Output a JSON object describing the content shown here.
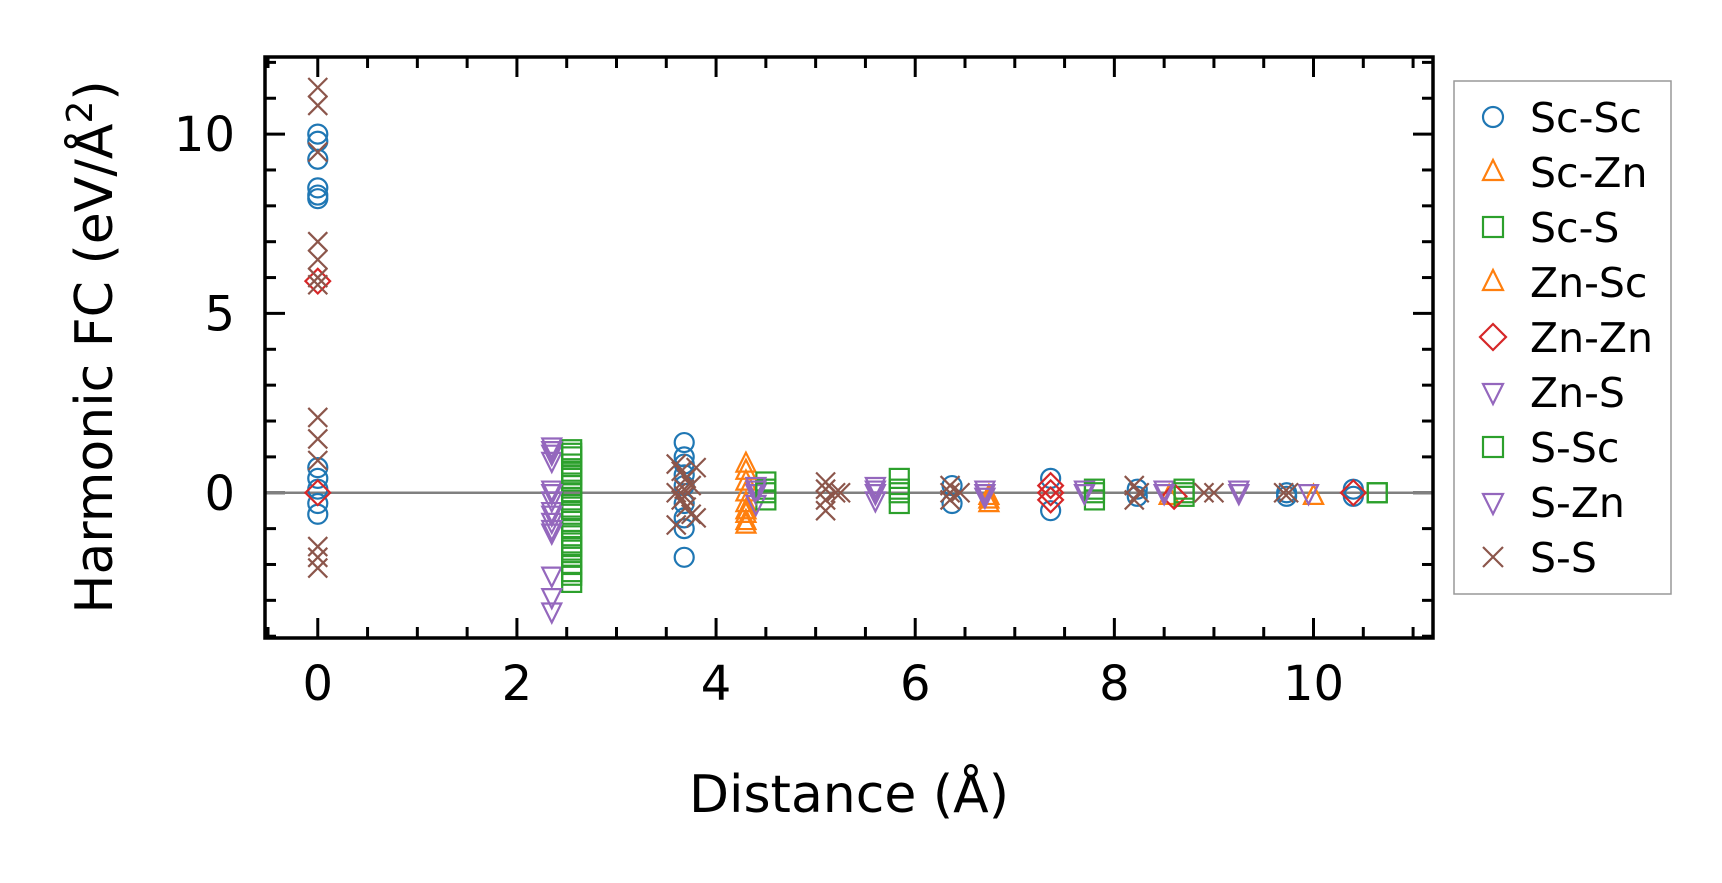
{
  "chart_data": {
    "type": "scatter",
    "title": "",
    "xlabel": "Distance (Å)",
    "ylabel_main": "Harmonic FC (eV/Å",
    "ylabel_sup": "2",
    "ylabel_close": ")",
    "xlim": [
      -0.53,
      11.2
    ],
    "ylim": [
      -4.05,
      12.15
    ],
    "xticks": [
      0,
      2,
      4,
      6,
      8,
      10
    ],
    "xtick_labels": [
      "0",
      "2",
      "4",
      "6",
      "8",
      "10"
    ],
    "yticks": [
      0,
      5,
      10
    ],
    "ytick_labels": [
      "0",
      "5",
      "10"
    ],
    "grid": false,
    "zero_line": true,
    "legend_position": "right-outside",
    "series": [
      {
        "name": "Sc-Sc",
        "marker": "circle",
        "filled": false,
        "color": "#1f77b4",
        "points": [
          [
            0,
            10
          ],
          [
            0,
            9.8
          ],
          [
            0,
            9.3
          ],
          [
            0,
            8.5
          ],
          [
            0,
            8.3
          ],
          [
            0,
            8.2
          ],
          [
            0,
            0.7
          ],
          [
            0,
            0.4
          ],
          [
            0,
            0.1
          ],
          [
            0,
            -0.3
          ],
          [
            0,
            -0.6
          ],
          [
            3.68,
            1.4
          ],
          [
            3.68,
            1.0
          ],
          [
            3.68,
            0.8
          ],
          [
            3.68,
            0.5
          ],
          [
            3.68,
            0.2
          ],
          [
            3.68,
            -0.3
          ],
          [
            3.68,
            -0.7
          ],
          [
            3.68,
            -1.0
          ],
          [
            3.68,
            -1.8
          ],
          [
            6.37,
            0.2
          ],
          [
            6.37,
            -0.3
          ],
          [
            7.36,
            0.4
          ],
          [
            7.36,
            -0.5
          ],
          [
            8.23,
            0.1
          ],
          [
            8.23,
            -0.1
          ],
          [
            9.73,
            0
          ],
          [
            9.73,
            -0.1
          ],
          [
            10.4,
            0.1
          ],
          [
            10.4,
            -0.1
          ]
        ]
      },
      {
        "name": "Sc-Zn",
        "marker": "triangle-up",
        "filled": false,
        "color": "#ff7f0e",
        "points": [
          [
            4.3,
            0.8
          ],
          [
            4.3,
            0.3
          ],
          [
            4.3,
            -0.3
          ],
          [
            4.3,
            -0.6
          ],
          [
            4.3,
            -0.9
          ],
          [
            6.74,
            -0.1
          ],
          [
            6.74,
            -0.3
          ],
          [
            8.55,
            -0.1
          ],
          [
            10.0,
            -0.1
          ]
        ]
      },
      {
        "name": "Sc-S",
        "marker": "square",
        "filled": false,
        "color": "#2ca02c",
        "points": [
          [
            2.55,
            1.2
          ],
          [
            2.55,
            1.0
          ],
          [
            2.55,
            0.8
          ],
          [
            2.55,
            0.6
          ],
          [
            2.55,
            0.4
          ],
          [
            2.55,
            0.2
          ],
          [
            2.55,
            0
          ],
          [
            2.55,
            -0.2
          ],
          [
            2.55,
            -0.4
          ],
          [
            2.55,
            -0.6
          ],
          [
            2.55,
            -0.8
          ],
          [
            2.55,
            -1.0
          ],
          [
            2.55,
            -1.2
          ],
          [
            2.55,
            -1.4
          ],
          [
            2.55,
            -1.6
          ],
          [
            2.55,
            -1.8
          ],
          [
            2.55,
            -2.0
          ],
          [
            2.55,
            -2.3
          ],
          [
            2.55,
            -2.5
          ],
          [
            4.5,
            0.3
          ],
          [
            4.5,
            0.1
          ],
          [
            4.5,
            -0.2
          ],
          [
            5.84,
            0.4
          ],
          [
            5.84,
            0.1
          ],
          [
            5.84,
            -0.3
          ],
          [
            7.8,
            0.1
          ],
          [
            7.8,
            -0.2
          ],
          [
            8.7,
            0
          ],
          [
            8.7,
            -0.1
          ],
          [
            10.64,
            0
          ]
        ]
      },
      {
        "name": "Zn-Sc",
        "marker": "triangle-up",
        "filled": false,
        "color": "#ff7f0e",
        "points": [
          [
            4.3,
            0.6
          ],
          [
            4.3,
            0
          ],
          [
            4.3,
            -0.5
          ],
          [
            4.3,
            -0.8
          ],
          [
            6.74,
            -0.2
          ],
          [
            10.0,
            -0.1
          ]
        ]
      },
      {
        "name": "Zn-Zn",
        "marker": "diamond",
        "filled": false,
        "color": "#d62728",
        "points": [
          [
            0,
            5.9
          ],
          [
            0,
            0
          ],
          [
            7.36,
            0.2
          ],
          [
            7.36,
            0
          ],
          [
            7.36,
            -0.2
          ],
          [
            8.6,
            -0.1
          ],
          [
            10.4,
            0
          ]
        ]
      },
      {
        "name": "Zn-S",
        "marker": "triangle-down",
        "filled": false,
        "color": "#9467bd",
        "points": [
          [
            2.35,
            1.3
          ],
          [
            2.35,
            1.1
          ],
          [
            2.35,
            0.9
          ],
          [
            2.35,
            0.1
          ],
          [
            2.35,
            -0.2
          ],
          [
            2.35,
            -0.5
          ],
          [
            2.35,
            -0.8
          ],
          [
            2.35,
            -1.1
          ],
          [
            2.35,
            -2.3
          ],
          [
            2.35,
            -2.9
          ],
          [
            2.35,
            -3.3
          ],
          [
            4.4,
            0.2
          ],
          [
            4.4,
            0
          ],
          [
            4.4,
            -0.3
          ],
          [
            5.6,
            0.2
          ],
          [
            5.6,
            0
          ],
          [
            5.6,
            -0.2
          ],
          [
            6.7,
            0.1
          ],
          [
            6.7,
            -0.1
          ],
          [
            7.7,
            0.1
          ],
          [
            8.5,
            0.1
          ],
          [
            9.25,
            0
          ],
          [
            9.95,
            0
          ]
        ]
      },
      {
        "name": "S-Sc",
        "marker": "square",
        "filled": false,
        "color": "#2ca02c",
        "points": [
          [
            2.55,
            1.1
          ],
          [
            2.55,
            0.5
          ],
          [
            2.55,
            -0.5
          ],
          [
            2.55,
            -1.5
          ],
          [
            2.55,
            -2.2
          ],
          [
            4.5,
            0
          ],
          [
            5.84,
            0
          ],
          [
            7.8,
            0
          ],
          [
            8.7,
            0.1
          ],
          [
            10.64,
            0
          ]
        ]
      },
      {
        "name": "S-Zn",
        "marker": "triangle-down",
        "filled": false,
        "color": "#9467bd",
        "points": [
          [
            2.35,
            1.2
          ],
          [
            2.35,
            0
          ],
          [
            2.35,
            -0.6
          ],
          [
            2.35,
            -1.0
          ],
          [
            4.4,
            0.1
          ],
          [
            5.6,
            0.1
          ],
          [
            6.7,
            0
          ],
          [
            7.7,
            0
          ],
          [
            8.5,
            0
          ],
          [
            9.25,
            0.1
          ]
        ]
      },
      {
        "name": "S-S",
        "marker": "x",
        "filled": false,
        "color": "#8c564b",
        "points": [
          [
            0,
            11.3
          ],
          [
            0,
            10.8
          ],
          [
            0,
            9.5
          ],
          [
            0,
            7.0
          ],
          [
            0,
            6.5
          ],
          [
            0,
            6.0
          ],
          [
            0,
            5.8
          ],
          [
            0,
            2.1
          ],
          [
            0,
            1.5
          ],
          [
            0,
            0.9
          ],
          [
            0,
            -1.5
          ],
          [
            0,
            -1.8
          ],
          [
            0,
            -2.1
          ],
          [
            3.6,
            0.8
          ],
          [
            3.65,
            0.6
          ],
          [
            3.7,
            0.4
          ],
          [
            3.75,
            0.2
          ],
          [
            3.6,
            0
          ],
          [
            3.65,
            -0.2
          ],
          [
            3.7,
            -0.4
          ],
          [
            3.75,
            -0.6
          ],
          [
            3.6,
            -0.9
          ],
          [
            3.8,
            0.7
          ],
          [
            3.8,
            -0.7
          ],
          [
            3.68,
            0.1
          ],
          [
            3.68,
            -0.1
          ],
          [
            5.1,
            0.3
          ],
          [
            5.1,
            0.1
          ],
          [
            5.1,
            -0.2
          ],
          [
            5.1,
            -0.5
          ],
          [
            5.2,
            0
          ],
          [
            5.25,
            0
          ],
          [
            6.35,
            0.2
          ],
          [
            6.35,
            0
          ],
          [
            6.35,
            -0.2
          ],
          [
            6.45,
            0
          ],
          [
            8.2,
            0.2
          ],
          [
            8.2,
            -0.2
          ],
          [
            8.25,
            0
          ],
          [
            8.9,
            0
          ],
          [
            9.0,
            0
          ],
          [
            9.7,
            0
          ],
          [
            9.75,
            0
          ]
        ]
      }
    ]
  }
}
